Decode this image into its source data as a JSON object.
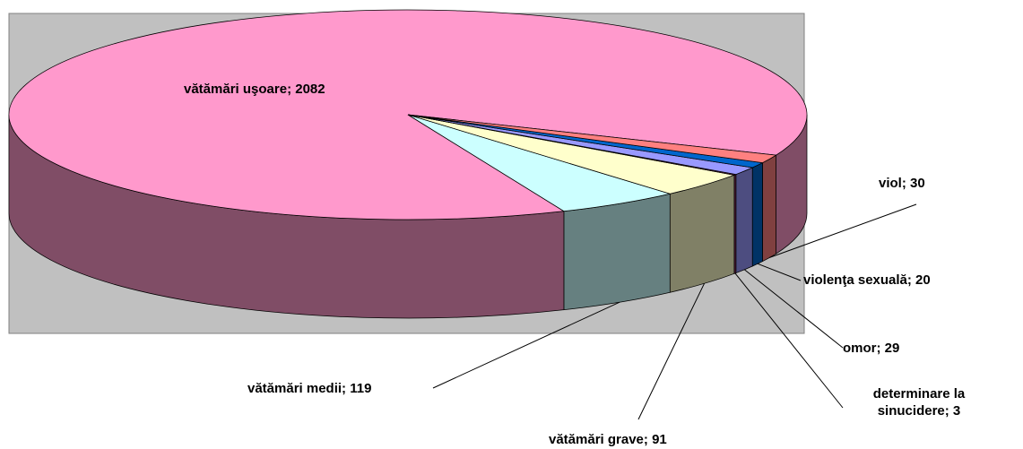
{
  "chart_data": {
    "type": "pie3d",
    "values": [
      2082,
      119,
      91,
      3,
      29,
      20,
      30
    ],
    "value_labels": [
      "vătămări uşoare; 2082",
      "vătămări medii; 119",
      "vătămări grave; 91",
      "determinare la sinucidere; 3",
      "omor; 29",
      "violenţa sexuală; 20",
      "viol; 30"
    ],
    "colors": [
      "#ff99cc",
      "#ccffff",
      "#ffffcc",
      "#993366",
      "#9999ff",
      "#0066cc",
      "#ff8080"
    ]
  }
}
